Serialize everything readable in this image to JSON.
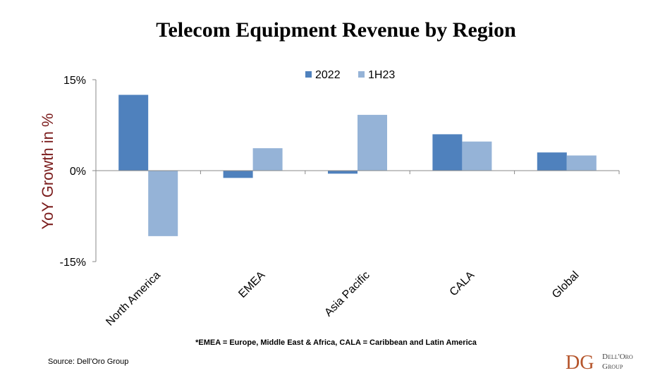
{
  "chart_data": {
    "type": "bar",
    "title": "Telecom Equipment Revenue by Region",
    "ylabel": "YoY Growth in %",
    "xlabel": "",
    "categories": [
      "North America",
      "EMEA",
      "Asia Pacific",
      "CALA",
      "Global"
    ],
    "series": [
      {
        "name": "2022",
        "color": "#4f81bd",
        "values": [
          12.5,
          -1.2,
          -0.5,
          6.0,
          3.0
        ]
      },
      {
        "name": "1H23",
        "color": "#95b3d7",
        "values": [
          -10.8,
          3.7,
          9.2,
          4.8,
          2.5
        ]
      }
    ],
    "ylim": [
      -15,
      15
    ],
    "yticks": [
      15,
      0,
      -15
    ],
    "ytick_labels": [
      "15%",
      "0%",
      "-15%"
    ],
    "grid": false,
    "legend": "top-center",
    "ylabel_color": "#7b1c1c"
  },
  "footnote": "*EMEA = Europe, Middle East & Africa, CALA = Caribbean and Latin America",
  "source": "Source: Dell’Oro Group",
  "logo": {
    "mark": "DG",
    "line1": "Dell'Oro",
    "line2": "Group"
  }
}
